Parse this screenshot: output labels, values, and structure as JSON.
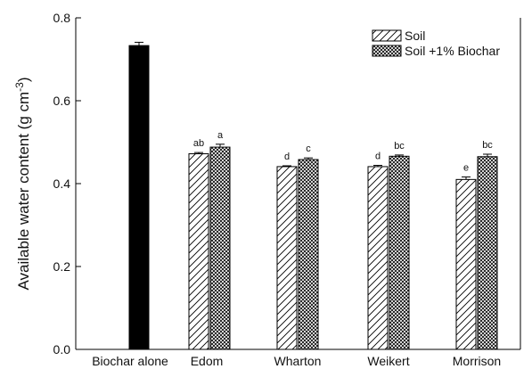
{
  "chart_data": {
    "type": "bar",
    "ylabel_main": "Available water content (g cm",
    "ylabel_sup": "-3",
    "ylabel_close": ")",
    "ylim": [
      0.0,
      0.8
    ],
    "yticks": [
      "0.0",
      "0.2",
      "0.4",
      "0.6",
      "0.8"
    ],
    "grid": false,
    "legend_position": "top-right",
    "categories": [
      "Biochar alone",
      "Edom",
      "Wharton",
      "Weikert",
      "Morrison"
    ],
    "biochar_alone": {
      "value": 0.733,
      "error": 0.008,
      "color": "#000000"
    },
    "series": [
      {
        "name": "Soil",
        "values": [
          null,
          0.472,
          0.441,
          0.441,
          0.41
        ],
        "errors": [
          null,
          0.003,
          0.002,
          0.003,
          0.006
        ],
        "letters": [
          null,
          "ab",
          "d",
          "d",
          "e"
        ],
        "pattern": "diagonal-hatch"
      },
      {
        "name": "Soil +1% Biochar",
        "values": [
          null,
          0.488,
          0.458,
          0.466,
          0.465
        ],
        "errors": [
          null,
          0.007,
          0.004,
          0.003,
          0.006
        ],
        "letters": [
          null,
          "a",
          "c",
          "bc",
          "bc"
        ],
        "pattern": "crosshatch"
      }
    ]
  }
}
